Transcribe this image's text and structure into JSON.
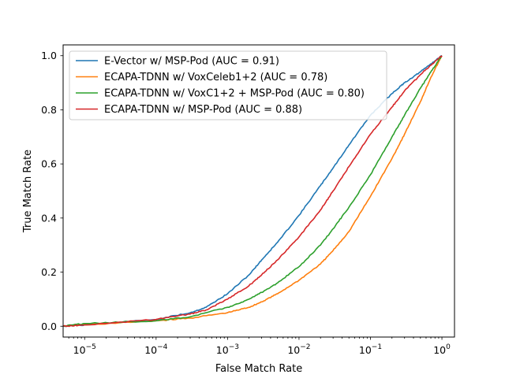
{
  "chart_data": {
    "type": "line",
    "title": "",
    "xlabel": "False Match Rate",
    "ylabel": "True Match Rate",
    "xscale": "log",
    "xlim": [
      5e-06,
      1.5
    ],
    "ylim": [
      -0.04,
      1.04
    ],
    "grid": false,
    "legend_position": "top-left",
    "xticks": [
      {
        "value": 1e-05,
        "base": "10",
        "exp": "−5"
      },
      {
        "value": 0.0001,
        "base": "10",
        "exp": "−4"
      },
      {
        "value": 0.001,
        "base": "10",
        "exp": "−3"
      },
      {
        "value": 0.01,
        "base": "10",
        "exp": "−2"
      },
      {
        "value": 0.1,
        "base": "10",
        "exp": "−1"
      },
      {
        "value": 1,
        "base": "10",
        "exp": "0"
      }
    ],
    "yticks": [
      {
        "value": 0.0,
        "label": "0.0"
      },
      {
        "value": 0.2,
        "label": "0.2"
      },
      {
        "value": 0.4,
        "label": "0.4"
      },
      {
        "value": 0.6,
        "label": "0.6"
      },
      {
        "value": 0.8,
        "label": "0.8"
      },
      {
        "value": 1.0,
        "label": "1.0"
      }
    ],
    "series": [
      {
        "name": "E-Vector w/ MSP-Pod (AUC = 0.91)",
        "color": "#1f77b4",
        "x": [
          5e-06,
          1e-05,
          0.0001,
          0.0003,
          0.0005,
          0.001,
          0.002,
          0.003,
          0.005,
          0.01,
          0.02,
          0.03,
          0.05,
          0.1,
          0.2,
          0.3,
          0.5,
          0.7,
          1.0
        ],
        "y": [
          0.0,
          0.005,
          0.025,
          0.05,
          0.07,
          0.12,
          0.19,
          0.245,
          0.31,
          0.41,
          0.52,
          0.585,
          0.67,
          0.78,
          0.86,
          0.9,
          0.94,
          0.97,
          1.0
        ]
      },
      {
        "name": "ECAPA-TDNN w/ VoxCeleb1+2 (AUC = 0.78)",
        "color": "#ff7f0e",
        "x": [
          5e-06,
          1e-05,
          0.0001,
          0.0003,
          0.001,
          0.002,
          0.003,
          0.005,
          0.01,
          0.02,
          0.03,
          0.05,
          0.1,
          0.2,
          0.3,
          0.5,
          0.7,
          1.0
        ],
        "y": [
          0.0,
          0.005,
          0.02,
          0.03,
          0.05,
          0.07,
          0.09,
          0.12,
          0.17,
          0.23,
          0.28,
          0.35,
          0.48,
          0.62,
          0.71,
          0.83,
          0.92,
          1.0
        ]
      },
      {
        "name": "ECAPA-TDNN w/ VoxC1+2 + MSP-Pod (AUC = 0.80)",
        "color": "#2ca02c",
        "x": [
          5e-06,
          1e-05,
          0.0001,
          0.0003,
          0.001,
          0.002,
          0.003,
          0.005,
          0.01,
          0.02,
          0.03,
          0.05,
          0.1,
          0.2,
          0.3,
          0.5,
          0.7,
          1.0
        ],
        "y": [
          0.0,
          0.01,
          0.02,
          0.035,
          0.07,
          0.1,
          0.125,
          0.16,
          0.22,
          0.3,
          0.36,
          0.44,
          0.56,
          0.7,
          0.78,
          0.88,
          0.94,
          1.0
        ]
      },
      {
        "name": "ECAPA-TDNN w/ MSP-Pod (AUC = 0.88)",
        "color": "#d62728",
        "x": [
          5e-06,
          1e-05,
          0.0001,
          0.0003,
          0.0005,
          0.001,
          0.002,
          0.003,
          0.005,
          0.01,
          0.02,
          0.03,
          0.05,
          0.1,
          0.2,
          0.3,
          0.5,
          0.7,
          1.0
        ],
        "y": [
          0.0,
          0.005,
          0.025,
          0.045,
          0.06,
          0.1,
          0.15,
          0.19,
          0.245,
          0.33,
          0.43,
          0.5,
          0.59,
          0.71,
          0.81,
          0.87,
          0.93,
          0.965,
          1.0
        ]
      }
    ]
  }
}
